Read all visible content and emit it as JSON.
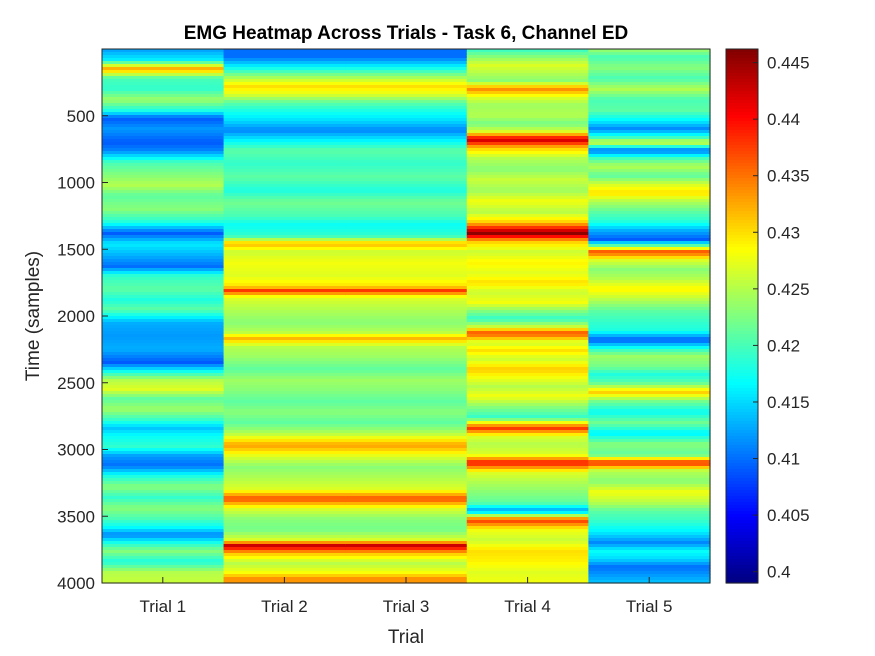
{
  "chart_data": {
    "type": "heatmap",
    "title": "EMG Heatmap Across Trials - Task 6, Channel ED",
    "xlabel": "Trial",
    "ylabel": "Time (samples)",
    "categories": [
      "Trial 1",
      "Trial 2",
      "Trial 3",
      "Trial 4",
      "Trial 5"
    ],
    "ylim": [
      0,
      4000
    ],
    "y_direction": "reverse",
    "y_ticks": [
      "500",
      "1000",
      "1500",
      "2000",
      "2500",
      "3000",
      "3500",
      "4000"
    ],
    "colormap": "jet",
    "clim": [
      0.399,
      0.4462
    ],
    "colorbar_ticks": [
      "0.4",
      "0.405",
      "0.41",
      "0.415",
      "0.42",
      "0.425",
      "0.43",
      "0.435",
      "0.44",
      "0.445"
    ],
    "series": [
      {
        "values": [
          [
            0,
            0.412
          ],
          [
            80,
            0.416
          ],
          [
            150,
            0.433
          ],
          [
            220,
            0.42
          ],
          [
            300,
            0.419
          ],
          [
            380,
            0.424
          ],
          [
            460,
            0.418
          ],
          [
            520,
            0.409
          ],
          [
            600,
            0.412
          ],
          [
            700,
            0.409
          ],
          [
            760,
            0.411
          ],
          [
            850,
            0.42
          ],
          [
            950,
            0.423
          ],
          [
            1020,
            0.425
          ],
          [
            1100,
            0.421
          ],
          [
            1200,
            0.423
          ],
          [
            1300,
            0.418
          ],
          [
            1380,
            0.409
          ],
          [
            1460,
            0.416
          ],
          [
            1550,
            0.413
          ],
          [
            1630,
            0.41
          ],
          [
            1700,
            0.419
          ],
          [
            1800,
            0.421
          ],
          [
            1880,
            0.418
          ],
          [
            1950,
            0.421
          ],
          [
            2050,
            0.413
          ],
          [
            2150,
            0.412
          ],
          [
            2250,
            0.413
          ],
          [
            2350,
            0.409
          ],
          [
            2420,
            0.418
          ],
          [
            2480,
            0.425
          ],
          [
            2550,
            0.427
          ],
          [
            2620,
            0.421
          ],
          [
            2700,
            0.424
          ],
          [
            2780,
            0.419
          ],
          [
            2840,
            0.414
          ],
          [
            2900,
            0.417
          ],
          [
            2980,
            0.419
          ],
          [
            3050,
            0.412
          ],
          [
            3120,
            0.41
          ],
          [
            3200,
            0.418
          ],
          [
            3280,
            0.423
          ],
          [
            3360,
            0.419
          ],
          [
            3440,
            0.423
          ],
          [
            3520,
            0.42
          ],
          [
            3580,
            0.417
          ],
          [
            3640,
            0.411
          ],
          [
            3700,
            0.418
          ],
          [
            3760,
            0.423
          ],
          [
            3840,
            0.418
          ],
          [
            3920,
            0.425
          ],
          [
            4000,
            0.426
          ]
        ]
      },
      {
        "values": [
          [
            0,
            0.41
          ],
          [
            60,
            0.41
          ],
          [
            150,
            0.418
          ],
          [
            220,
            0.425
          ],
          [
            280,
            0.43
          ],
          [
            340,
            0.427
          ],
          [
            400,
            0.421
          ],
          [
            460,
            0.418
          ],
          [
            540,
            0.415
          ],
          [
            610,
            0.411
          ],
          [
            680,
            0.416
          ],
          [
            760,
            0.421
          ],
          [
            860,
            0.419
          ],
          [
            960,
            0.421
          ],
          [
            1060,
            0.418
          ],
          [
            1150,
            0.422
          ],
          [
            1250,
            0.42
          ],
          [
            1320,
            0.417
          ],
          [
            1400,
            0.419
          ],
          [
            1460,
            0.432
          ],
          [
            1520,
            0.426
          ],
          [
            1600,
            0.428
          ],
          [
            1700,
            0.427
          ],
          [
            1780,
            0.43
          ],
          [
            1810,
            0.438
          ],
          [
            1860,
            0.427
          ],
          [
            1950,
            0.425
          ],
          [
            2050,
            0.423
          ],
          [
            2120,
            0.425
          ],
          [
            2170,
            0.432
          ],
          [
            2230,
            0.425
          ],
          [
            2300,
            0.424
          ],
          [
            2400,
            0.421
          ],
          [
            2480,
            0.424
          ],
          [
            2550,
            0.423
          ],
          [
            2640,
            0.421
          ],
          [
            2720,
            0.423
          ],
          [
            2800,
            0.421
          ],
          [
            2880,
            0.425
          ],
          [
            2970,
            0.433
          ],
          [
            3050,
            0.427
          ],
          [
            3130,
            0.423
          ],
          [
            3220,
            0.425
          ],
          [
            3300,
            0.427
          ],
          [
            3370,
            0.437
          ],
          [
            3440,
            0.427
          ],
          [
            3520,
            0.423
          ],
          [
            3600,
            0.422
          ],
          [
            3680,
            0.427
          ],
          [
            3720,
            0.443
          ],
          [
            3780,
            0.431
          ],
          [
            3850,
            0.425
          ],
          [
            3920,
            0.428
          ],
          [
            3970,
            0.434
          ],
          [
            4000,
            0.433
          ]
        ]
      },
      {
        "values": [
          [
            0,
            0.41
          ],
          [
            60,
            0.41
          ],
          [
            150,
            0.418
          ],
          [
            220,
            0.425
          ],
          [
            280,
            0.43
          ],
          [
            340,
            0.427
          ],
          [
            400,
            0.421
          ],
          [
            460,
            0.418
          ],
          [
            540,
            0.415
          ],
          [
            610,
            0.411
          ],
          [
            680,
            0.416
          ],
          [
            760,
            0.421
          ],
          [
            860,
            0.419
          ],
          [
            960,
            0.421
          ],
          [
            1060,
            0.418
          ],
          [
            1150,
            0.422
          ],
          [
            1250,
            0.42
          ],
          [
            1320,
            0.417
          ],
          [
            1400,
            0.419
          ],
          [
            1460,
            0.432
          ],
          [
            1520,
            0.426
          ],
          [
            1600,
            0.428
          ],
          [
            1700,
            0.427
          ],
          [
            1780,
            0.43
          ],
          [
            1810,
            0.438
          ],
          [
            1860,
            0.427
          ],
          [
            1950,
            0.425
          ],
          [
            2050,
            0.423
          ],
          [
            2120,
            0.425
          ],
          [
            2170,
            0.432
          ],
          [
            2230,
            0.425
          ],
          [
            2300,
            0.424
          ],
          [
            2400,
            0.421
          ],
          [
            2480,
            0.424
          ],
          [
            2550,
            0.423
          ],
          [
            2640,
            0.421
          ],
          [
            2720,
            0.423
          ],
          [
            2800,
            0.421
          ],
          [
            2880,
            0.425
          ],
          [
            2970,
            0.433
          ],
          [
            3050,
            0.427
          ],
          [
            3130,
            0.423
          ],
          [
            3220,
            0.425
          ],
          [
            3300,
            0.427
          ],
          [
            3370,
            0.437
          ],
          [
            3440,
            0.427
          ],
          [
            3520,
            0.423
          ],
          [
            3600,
            0.422
          ],
          [
            3680,
            0.427
          ],
          [
            3720,
            0.443
          ],
          [
            3780,
            0.431
          ],
          [
            3850,
            0.425
          ],
          [
            3920,
            0.428
          ],
          [
            3970,
            0.434
          ],
          [
            4000,
            0.433
          ]
        ]
      },
      {
        "values": [
          [
            0,
            0.419
          ],
          [
            60,
            0.423
          ],
          [
            120,
            0.427
          ],
          [
            180,
            0.425
          ],
          [
            240,
            0.423
          ],
          [
            300,
            0.434
          ],
          [
            360,
            0.427
          ],
          [
            420,
            0.424
          ],
          [
            500,
            0.425
          ],
          [
            560,
            0.422
          ],
          [
            620,
            0.427
          ],
          [
            680,
            0.443
          ],
          [
            740,
            0.431
          ],
          [
            820,
            0.425
          ],
          [
            900,
            0.423
          ],
          [
            980,
            0.426
          ],
          [
            1060,
            0.424
          ],
          [
            1140,
            0.428
          ],
          [
            1220,
            0.425
          ],
          [
            1300,
            0.431
          ],
          [
            1380,
            0.446
          ],
          [
            1440,
            0.431
          ],
          [
            1520,
            0.426
          ],
          [
            1600,
            0.429
          ],
          [
            1680,
            0.427
          ],
          [
            1750,
            0.43
          ],
          [
            1820,
            0.426
          ],
          [
            1900,
            0.428
          ],
          [
            1960,
            0.423
          ],
          [
            2020,
            0.419
          ],
          [
            2080,
            0.426
          ],
          [
            2130,
            0.437
          ],
          [
            2200,
            0.426
          ],
          [
            2260,
            0.43
          ],
          [
            2320,
            0.426
          ],
          [
            2400,
            0.431
          ],
          [
            2460,
            0.428
          ],
          [
            2530,
            0.425
          ],
          [
            2600,
            0.428
          ],
          [
            2680,
            0.423
          ],
          [
            2760,
            0.419
          ],
          [
            2840,
            0.438
          ],
          [
            2900,
            0.427
          ],
          [
            2960,
            0.425
          ],
          [
            3040,
            0.427
          ],
          [
            3100,
            0.44
          ],
          [
            3170,
            0.427
          ],
          [
            3240,
            0.425
          ],
          [
            3320,
            0.423
          ],
          [
            3400,
            0.421
          ],
          [
            3460,
            0.412
          ],
          [
            3530,
            0.438
          ],
          [
            3600,
            0.428
          ],
          [
            3680,
            0.426
          ],
          [
            3760,
            0.43
          ],
          [
            3840,
            0.429
          ],
          [
            3920,
            0.427
          ],
          [
            4000,
            0.428
          ]
        ]
      },
      {
        "values": [
          [
            0,
            0.424
          ],
          [
            60,
            0.42
          ],
          [
            140,
            0.423
          ],
          [
            220,
            0.42
          ],
          [
            300,
            0.425
          ],
          [
            380,
            0.42
          ],
          [
            460,
            0.421
          ],
          [
            540,
            0.416
          ],
          [
            600,
            0.411
          ],
          [
            660,
            0.419
          ],
          [
            700,
            0.427
          ],
          [
            760,
            0.41
          ],
          [
            820,
            0.42
          ],
          [
            880,
            0.425
          ],
          [
            950,
            0.421
          ],
          [
            1020,
            0.427
          ],
          [
            1080,
            0.43
          ],
          [
            1140,
            0.425
          ],
          [
            1220,
            0.421
          ],
          [
            1300,
            0.418
          ],
          [
            1360,
            0.413
          ],
          [
            1430,
            0.409
          ],
          [
            1480,
            0.423
          ],
          [
            1520,
            0.437
          ],
          [
            1580,
            0.427
          ],
          [
            1650,
            0.423
          ],
          [
            1720,
            0.425
          ],
          [
            1800,
            0.429
          ],
          [
            1880,
            0.425
          ],
          [
            1960,
            0.421
          ],
          [
            2050,
            0.419
          ],
          [
            2110,
            0.418
          ],
          [
            2180,
            0.409
          ],
          [
            2250,
            0.419
          ],
          [
            2300,
            0.424
          ],
          [
            2380,
            0.422
          ],
          [
            2440,
            0.418
          ],
          [
            2500,
            0.421
          ],
          [
            2570,
            0.431
          ],
          [
            2640,
            0.422
          ],
          [
            2720,
            0.417
          ],
          [
            2800,
            0.422
          ],
          [
            2880,
            0.416
          ],
          [
            2960,
            0.423
          ],
          [
            3040,
            0.421
          ],
          [
            3100,
            0.439
          ],
          [
            3160,
            0.425
          ],
          [
            3240,
            0.423
          ],
          [
            3320,
            0.428
          ],
          [
            3400,
            0.425
          ],
          [
            3460,
            0.421
          ],
          [
            3540,
            0.419
          ],
          [
            3620,
            0.416
          ],
          [
            3700,
            0.411
          ],
          [
            3760,
            0.417
          ],
          [
            3820,
            0.415
          ],
          [
            3880,
            0.41
          ],
          [
            3940,
            0.412
          ],
          [
            4000,
            0.414
          ]
        ]
      }
    ]
  }
}
